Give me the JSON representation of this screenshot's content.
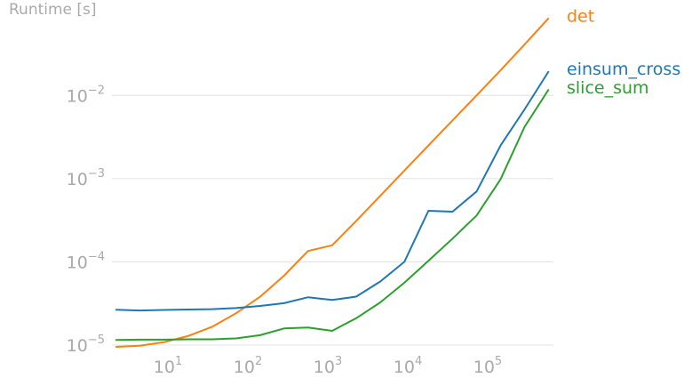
{
  "chart_data": {
    "type": "line",
    "title": "",
    "xlabel": "",
    "ylabel": "Runtime [s]",
    "xscale": "log",
    "yscale": "log",
    "xlim": [
      1.8,
      600000
    ],
    "ylim": [
      9.5e-06,
      0.09
    ],
    "grid": "horizontal",
    "legend": "series labels at right end of lines",
    "x_ticks": [
      {
        "value": 10,
        "base": "10",
        "exp": "1"
      },
      {
        "value": 100,
        "base": "10",
        "exp": "2"
      },
      {
        "value": 1000,
        "base": "10",
        "exp": "3"
      },
      {
        "value": 10000,
        "base": "10",
        "exp": "4"
      },
      {
        "value": 100000,
        "base": "10",
        "exp": "5"
      }
    ],
    "y_ticks": [
      {
        "value": 1e-05,
        "base": "10",
        "exp": "−5"
      },
      {
        "value": 0.0001,
        "base": "10",
        "exp": "−4"
      },
      {
        "value": 0.001,
        "base": "10",
        "exp": "−3"
      },
      {
        "value": 0.01,
        "base": "10",
        "exp": "−2"
      }
    ],
    "x": [
      2,
      4,
      8,
      16,
      32,
      64,
      128,
      256,
      512,
      1024,
      2048,
      4096,
      8192,
      16384,
      32768,
      65536,
      131072,
      262144,
      524288
    ],
    "series": [
      {
        "name": "det",
        "color": "#ff7f0e",
        "values": [
          9.5e-06,
          9.8e-06,
          1.08e-05,
          1.28e-05,
          1.65e-05,
          2.4e-05,
          3.8e-05,
          6.8e-05,
          0.000135,
          0.000158,
          0.00031,
          0.00062,
          0.00125,
          0.0025,
          0.005,
          0.01,
          0.02,
          0.041,
          0.085
        ]
      },
      {
        "name": "einsum_cross",
        "color": "#1f77b4",
        "values": [
          2.65e-05,
          2.6e-05,
          2.64e-05,
          2.67e-05,
          2.7e-05,
          2.78e-05,
          2.95e-05,
          3.18e-05,
          3.75e-05,
          3.48e-05,
          3.82e-05,
          5.8e-05,
          0.0001,
          0.00041,
          0.0004,
          0.0007,
          0.0025,
          0.0068,
          0.0195
        ]
      },
      {
        "name": "slice_sum",
        "color": "#2ca02c",
        "values": [
          1.15e-05,
          1.16e-05,
          1.16e-05,
          1.17e-05,
          1.17e-05,
          1.2e-05,
          1.31e-05,
          1.58e-05,
          1.62e-05,
          1.48e-05,
          2.1e-05,
          3.25e-05,
          5.6e-05,
          0.000103,
          0.00019,
          0.00036,
          0.00098,
          0.0042,
          0.0118
        ]
      }
    ]
  }
}
